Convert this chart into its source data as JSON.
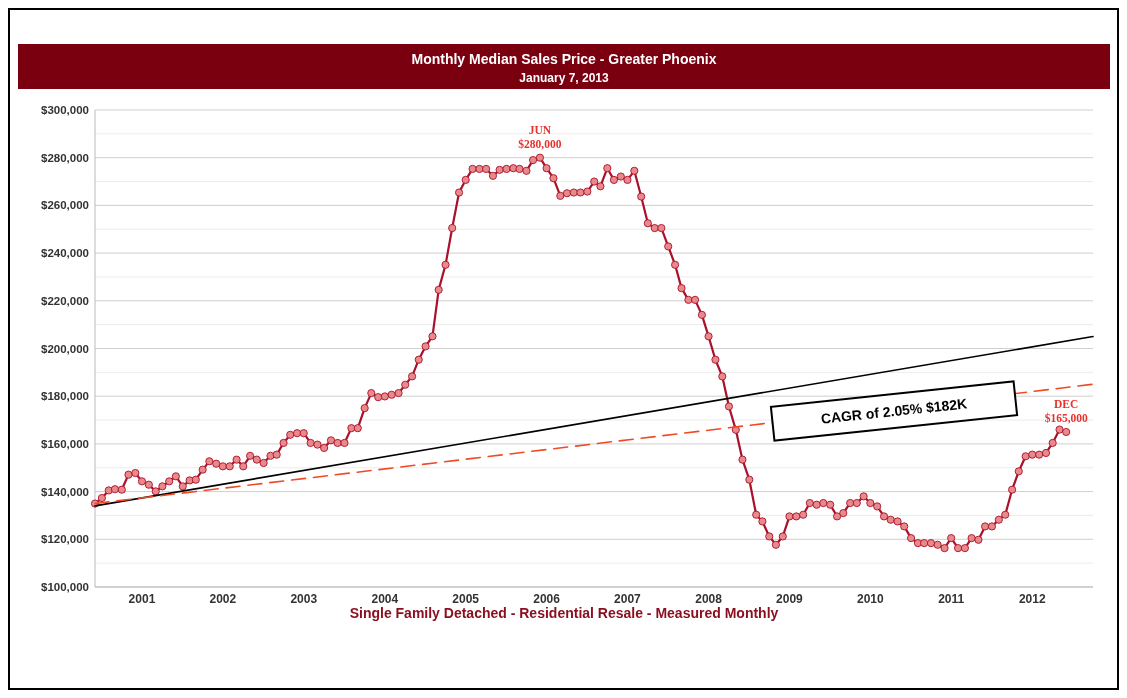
{
  "chart_data": {
    "type": "line",
    "title": "Monthly Median Sales Price - Greater Phoenix",
    "subtitle": "January 7, 2013",
    "xlabel": "Single Family Detached - Residential Resale - Measured Monthly",
    "xlim": [
      "2000-12",
      "2013-04"
    ],
    "xticks": [
      {
        "value": "2001-07",
        "label": "2001"
      },
      {
        "value": "2002-07",
        "label": "2002"
      },
      {
        "value": "2003-07",
        "label": "2003"
      },
      {
        "value": "2004-07",
        "label": "2004"
      },
      {
        "value": "2005-07",
        "label": "2005"
      },
      {
        "value": "2006-07",
        "label": "2006"
      },
      {
        "value": "2007-07",
        "label": "2007"
      },
      {
        "value": "2008-07",
        "label": "2008"
      },
      {
        "value": "2009-07",
        "label": "2009"
      },
      {
        "value": "2010-07",
        "label": "2010"
      },
      {
        "value": "2011-07",
        "label": "2011"
      },
      {
        "value": "2012-07",
        "label": "2012"
      }
    ],
    "ylim": [
      100000,
      300000
    ],
    "yticks": [
      {
        "value": 100000,
        "label": "$100,000"
      },
      {
        "value": 110000,
        "label": null
      },
      {
        "value": 120000,
        "label": "$120,000"
      },
      {
        "value": 130000,
        "label": null
      },
      {
        "value": 140000,
        "label": "$140,000"
      },
      {
        "value": 150000,
        "label": null
      },
      {
        "value": 160000,
        "label": "$160,000"
      },
      {
        "value": 170000,
        "label": null
      },
      {
        "value": 180000,
        "label": "$180,000"
      },
      {
        "value": 190000,
        "label": null
      },
      {
        "value": 200000,
        "label": "$200,000"
      },
      {
        "value": 210000,
        "label": null
      },
      {
        "value": 220000,
        "label": "$220,000"
      },
      {
        "value": 230000,
        "label": null
      },
      {
        "value": 240000,
        "label": "$240,000"
      },
      {
        "value": 250000,
        "label": null
      },
      {
        "value": 260000,
        "label": "$260,000"
      },
      {
        "value": 270000,
        "label": null
      },
      {
        "value": 280000,
        "label": "$280,000"
      },
      {
        "value": 290000,
        "label": null
      },
      {
        "value": 300000,
        "label": "$300,000"
      }
    ],
    "grid": "y",
    "marker": "circle",
    "series": [
      {
        "color": "#a8102c",
        "x": [
          "2000-12",
          "2001-01",
          "2001-02",
          "2001-03",
          "2001-04",
          "2001-05",
          "2001-06",
          "2001-07",
          "2001-08",
          "2001-09",
          "2001-10",
          "2001-11",
          "2001-12",
          "2002-01",
          "2002-02",
          "2002-03",
          "2002-04",
          "2002-05",
          "2002-06",
          "2002-07",
          "2002-08",
          "2002-09",
          "2002-10",
          "2002-11",
          "2002-12",
          "2003-01",
          "2003-02",
          "2003-03",
          "2003-04",
          "2003-05",
          "2003-06",
          "2003-07",
          "2003-08",
          "2003-09",
          "2003-10",
          "2003-11",
          "2003-12",
          "2004-01",
          "2004-02",
          "2004-03",
          "2004-04",
          "2004-05",
          "2004-06",
          "2004-07",
          "2004-08",
          "2004-09",
          "2004-10",
          "2004-11",
          "2004-12",
          "2005-01",
          "2005-02",
          "2005-03",
          "2005-04",
          "2005-05",
          "2005-06",
          "2005-07",
          "2005-08",
          "2005-09",
          "2005-10",
          "2005-11",
          "2005-12",
          "2006-01",
          "2006-02",
          "2006-03",
          "2006-04",
          "2006-05",
          "2006-06",
          "2006-07",
          "2006-08",
          "2006-09",
          "2006-10",
          "2006-11",
          "2006-12",
          "2007-01",
          "2007-02",
          "2007-03",
          "2007-04",
          "2007-05",
          "2007-06",
          "2007-07",
          "2007-08",
          "2007-09",
          "2007-10",
          "2007-11",
          "2007-12",
          "2008-01",
          "2008-02",
          "2008-03",
          "2008-04",
          "2008-05",
          "2008-06",
          "2008-07",
          "2008-08",
          "2008-09",
          "2008-10",
          "2008-11",
          "2008-12",
          "2009-01",
          "2009-02",
          "2009-03",
          "2009-04",
          "2009-05",
          "2009-06",
          "2009-07",
          "2009-08",
          "2009-09",
          "2009-10",
          "2009-11",
          "2009-12",
          "2010-01",
          "2010-02",
          "2010-03",
          "2010-04",
          "2010-05",
          "2010-06",
          "2010-07",
          "2010-08",
          "2010-09",
          "2010-10",
          "2010-11",
          "2010-12",
          "2011-01",
          "2011-02",
          "2011-03",
          "2011-04",
          "2011-05",
          "2011-06",
          "2011-07",
          "2011-08",
          "2011-09",
          "2011-10",
          "2011-11",
          "2011-12",
          "2012-01",
          "2012-02",
          "2012-03",
          "2012-04",
          "2012-05",
          "2012-06",
          "2012-07",
          "2012-08",
          "2012-09",
          "2012-10",
          "2012-11",
          "2012-12"
        ],
        "values": [
          135000,
          137300,
          140500,
          141000,
          140800,
          147100,
          147800,
          144300,
          142900,
          140100,
          142200,
          144300,
          146400,
          142200,
          144700,
          145000,
          149200,
          152700,
          151700,
          150600,
          150600,
          153400,
          150600,
          155000,
          153400,
          152000,
          155000,
          155500,
          160400,
          163800,
          164500,
          164500,
          160400,
          159700,
          158300,
          161500,
          160400,
          160400,
          166600,
          166600,
          175000,
          181300,
          179600,
          179900,
          180600,
          181300,
          184800,
          188300,
          195300,
          200900,
          205100,
          224600,
          235100,
          250500,
          265400,
          270700,
          275300,
          275300,
          275300,
          272400,
          274900,
          275300,
          275600,
          275300,
          274500,
          279000,
          280000,
          275600,
          271400,
          264000,
          265100,
          265400,
          265400,
          265800,
          270000,
          268000,
          275600,
          270700,
          272100,
          270700,
          274500,
          263700,
          252500,
          250500,
          250500,
          242800,
          235100,
          225300,
          220400,
          220400,
          214100,
          205100,
          195300,
          188300,
          175700,
          165900,
          153400,
          145000,
          130300,
          127500,
          121200,
          117700,
          121200,
          129600,
          129600,
          130300,
          135200,
          134500,
          135200,
          134500,
          129600,
          131000,
          135200,
          135200,
          138000,
          135200,
          133800,
          129600,
          128200,
          127500,
          125400,
          120500,
          118400,
          118400,
          118400,
          117700,
          116300,
          120500,
          116300,
          116300,
          120500,
          119800,
          125400,
          125400,
          128200,
          130300,
          140800,
          148500,
          154800,
          155500,
          155500,
          156200,
          160400,
          166000,
          165000
        ]
      },
      {
        "type": "line",
        "color": "#000000",
        "line_style": "solid",
        "marker": "none",
        "x": [
          "2000-12",
          "2013-04"
        ],
        "values": [
          134000,
          205000
        ]
      },
      {
        "type": "line",
        "color": "#f04a24",
        "line_style": "dashed",
        "marker": "none",
        "x": [
          "2000-12",
          "2013-04"
        ],
        "values": [
          135000,
          185000
        ]
      }
    ],
    "annotations": [
      {
        "text": "JUN\n$280,000",
        "x": "2006-06",
        "y": 280000
      },
      {
        "text": "DEC\n$165,000",
        "x": "2012-12",
        "y": 165000
      },
      "CAGR of 2.05%  $182K"
    ]
  }
}
